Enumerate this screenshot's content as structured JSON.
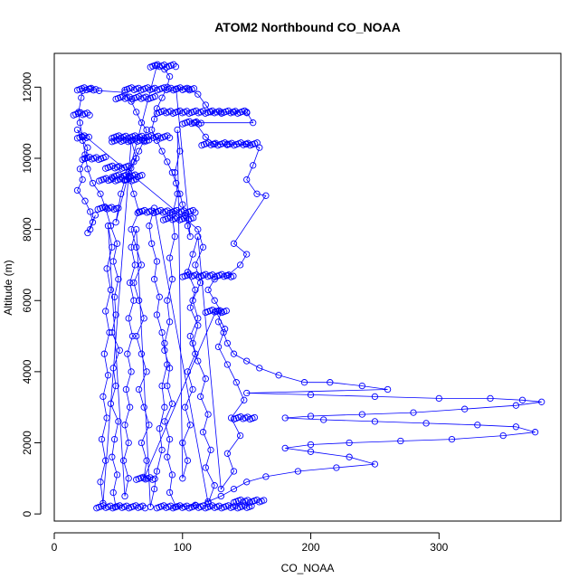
{
  "chart_data": {
    "type": "scatter",
    "title": "ATOM2 Northbound CO_NOAA",
    "xlabel": "CO_NOAA",
    "ylabel": "Altitude (m)",
    "xlim": [
      0,
      395
    ],
    "ylim": [
      -200,
      12950
    ],
    "x_ticks": [
      0,
      100,
      200,
      300
    ],
    "y_ticks": [
      0,
      2000,
      4000,
      6000,
      8000,
      10000,
      12000
    ],
    "grid": false,
    "legend": "none",
    "marker": "open-circle",
    "connect_points": true,
    "color": "#0000ff",
    "series": [
      {
        "points": [
          [
            48,
            200
          ],
          [
            46,
            600
          ],
          [
            49,
            1100
          ],
          [
            45,
            1600
          ],
          [
            47,
            2100
          ],
          [
            50,
            2600
          ],
          [
            44,
            3100
          ],
          [
            48,
            3600
          ],
          [
            46,
            4100
          ],
          [
            51,
            4600
          ],
          [
            45,
            5100
          ],
          [
            48,
            5600
          ],
          [
            47,
            6100
          ],
          [
            50,
            6600
          ],
          [
            46,
            7100
          ],
          [
            49,
            7600
          ],
          [
            44,
            8100
          ],
          [
            40,
            8600
          ],
          [
            36,
            9000
          ],
          [
            30,
            9300
          ],
          [
            26,
            9700
          ],
          [
            24,
            10100
          ],
          [
            22,
            10600
          ],
          [
            20,
            11000
          ],
          [
            19,
            11300
          ],
          [
            21,
            11700
          ],
          [
            22,
            11900
          ],
          [
            28,
            11950
          ],
          [
            35,
            11900
          ],
          [
            55,
            11850
          ],
          [
            60,
            11600
          ],
          [
            64,
            11300
          ],
          [
            68,
            11000
          ],
          [
            72,
            10800
          ],
          [
            70,
            10500
          ],
          [
            66,
            10200
          ],
          [
            62,
            9900
          ],
          [
            58,
            9600
          ],
          [
            55,
            9400
          ],
          [
            52,
            9000
          ],
          [
            50,
            8600
          ],
          [
            48,
            8200
          ],
          [
            80,
            12600
          ],
          [
            86,
            12500
          ],
          [
            90,
            12300
          ],
          [
            88,
            12000
          ],
          [
            84,
            11700
          ],
          [
            80,
            11400
          ],
          [
            78,
            11100
          ],
          [
            76,
            10800
          ],
          [
            80,
            10500
          ],
          [
            84,
            10200
          ],
          [
            88,
            9900
          ],
          [
            92,
            9600
          ],
          [
            95,
            9300
          ],
          [
            98,
            9000
          ],
          [
            100,
            8700
          ],
          [
            102,
            8400
          ],
          [
            104,
            8100
          ],
          [
            106,
            7800
          ],
          [
            95,
            11950
          ],
          [
            105,
            11950
          ],
          [
            112,
            11800
          ],
          [
            118,
            11500
          ],
          [
            122,
            11300
          ],
          [
            130,
            11300
          ],
          [
            140,
            11300
          ],
          [
            150,
            11300
          ],
          [
            155,
            11000
          ],
          [
            110,
            11000
          ],
          [
            118,
            10600
          ],
          [
            125,
            10400
          ],
          [
            135,
            10400
          ],
          [
            150,
            10400
          ],
          [
            160,
            10300
          ],
          [
            155,
            9800
          ],
          [
            150,
            9400
          ],
          [
            158,
            9000
          ],
          [
            165,
            8950
          ],
          [
            140,
            7600
          ],
          [
            150,
            7300
          ],
          [
            145,
            7000
          ],
          [
            135,
            6700
          ],
          [
            125,
            6600
          ],
          [
            120,
            6300
          ],
          [
            125,
            6000
          ],
          [
            130,
            5700
          ],
          [
            128,
            5400
          ],
          [
            132,
            5100
          ],
          [
            135,
            4800
          ],
          [
            140,
            4500
          ],
          [
            150,
            4300
          ],
          [
            160,
            4100
          ],
          [
            175,
            3900
          ],
          [
            195,
            3700
          ],
          [
            215,
            3700
          ],
          [
            240,
            3600
          ],
          [
            260,
            3500
          ],
          [
            150,
            3400
          ],
          [
            200,
            3350
          ],
          [
            250,
            3300
          ],
          [
            300,
            3250
          ],
          [
            340,
            3250
          ],
          [
            365,
            3200
          ],
          [
            380,
            3150
          ],
          [
            360,
            3050
          ],
          [
            320,
            2950
          ],
          [
            280,
            2850
          ],
          [
            240,
            2800
          ],
          [
            200,
            2750
          ],
          [
            180,
            2700
          ],
          [
            210,
            2650
          ],
          [
            250,
            2600
          ],
          [
            290,
            2550
          ],
          [
            330,
            2500
          ],
          [
            360,
            2450
          ],
          [
            375,
            2300
          ],
          [
            350,
            2200
          ],
          [
            310,
            2100
          ],
          [
            270,
            2050
          ],
          [
            230,
            2000
          ],
          [
            200,
            1950
          ],
          [
            180,
            1850
          ],
          [
            200,
            1750
          ],
          [
            230,
            1600
          ],
          [
            250,
            1400
          ],
          [
            220,
            1300
          ],
          [
            190,
            1200
          ],
          [
            165,
            1050
          ],
          [
            150,
            900
          ],
          [
            140,
            700
          ],
          [
            130,
            500
          ],
          [
            120,
            350
          ],
          [
            110,
            250
          ],
          [
            95,
            200
          ],
          [
            90,
            600
          ],
          [
            92,
            1100
          ],
          [
            88,
            1600
          ],
          [
            90,
            2100
          ],
          [
            86,
            2600
          ],
          [
            92,
            3100
          ],
          [
            88,
            3600
          ],
          [
            90,
            4100
          ],
          [
            86,
            4600
          ],
          [
            84,
            5100
          ],
          [
            80,
            5600
          ],
          [
            82,
            6100
          ],
          [
            78,
            6600
          ],
          [
            80,
            7100
          ],
          [
            76,
            7600
          ],
          [
            74,
            8100
          ],
          [
            78,
            8600
          ],
          [
            120,
            300
          ],
          [
            125,
            800
          ],
          [
            118,
            1300
          ],
          [
            122,
            1800
          ],
          [
            116,
            2300
          ],
          [
            120,
            2800
          ],
          [
            114,
            3300
          ],
          [
            118,
            3800
          ],
          [
            112,
            4300
          ],
          [
            108,
            4800
          ],
          [
            112,
            5300
          ],
          [
            106,
            5800
          ],
          [
            110,
            6300
          ],
          [
            104,
            6800
          ],
          [
            108,
            7300
          ],
          [
            112,
            7800
          ],
          [
            130,
            700
          ],
          [
            140,
            1200
          ],
          [
            135,
            1700
          ],
          [
            145,
            2200
          ],
          [
            138,
            2700
          ],
          [
            148,
            3200
          ],
          [
            142,
            3700
          ],
          [
            135,
            4200
          ],
          [
            128,
            4700
          ],
          [
            133,
            5200
          ],
          [
            126,
            5700
          ],
          [
            70,
            1000
          ],
          [
            72,
            1500
          ],
          [
            68,
            2000
          ],
          [
            74,
            2500
          ],
          [
            70,
            3000
          ],
          [
            66,
            3500
          ],
          [
            72,
            4000
          ],
          [
            68,
            4500
          ],
          [
            64,
            5000
          ],
          [
            70,
            5500
          ],
          [
            66,
            6000
          ],
          [
            62,
            6500
          ],
          [
            68,
            7000
          ],
          [
            64,
            7500
          ],
          [
            60,
            8000
          ],
          [
            66,
            8500
          ],
          [
            62,
            9000
          ],
          [
            58,
            9500
          ],
          [
            64,
            10000
          ],
          [
            60,
            10500
          ],
          [
            38,
            300
          ],
          [
            36,
            900
          ],
          [
            40,
            1500
          ],
          [
            37,
            2100
          ],
          [
            41,
            2700
          ],
          [
            38,
            3300
          ],
          [
            42,
            3900
          ],
          [
            39,
            4500
          ],
          [
            43,
            5100
          ],
          [
            40,
            5700
          ],
          [
            44,
            6300
          ],
          [
            41,
            6900
          ],
          [
            45,
            7500
          ],
          [
            42,
            8100
          ],
          [
            55,
            500
          ],
          [
            58,
            1000
          ],
          [
            54,
            1500
          ],
          [
            58,
            2000
          ],
          [
            55,
            2500
          ],
          [
            59,
            3000
          ],
          [
            56,
            3500
          ],
          [
            60,
            4000
          ],
          [
            57,
            4500
          ],
          [
            61,
            5000
          ],
          [
            58,
            5500
          ],
          [
            62,
            6000
          ],
          [
            59,
            6500
          ],
          [
            63,
            7000
          ],
          [
            60,
            7500
          ],
          [
            64,
            8000
          ],
          [
            75,
            200
          ],
          [
            78,
            700
          ],
          [
            80,
            1200
          ],
          [
            84,
            1800
          ],
          [
            82,
            2400
          ],
          [
            86,
            3000
          ],
          [
            84,
            3600
          ],
          [
            88,
            4200
          ],
          [
            86,
            4800
          ],
          [
            90,
            5400
          ],
          [
            88,
            6000
          ],
          [
            92,
            6600
          ],
          [
            90,
            7200
          ],
          [
            94,
            7800
          ],
          [
            92,
            8400
          ],
          [
            96,
            9000
          ],
          [
            94,
            9600
          ],
          [
            98,
            10200
          ],
          [
            96,
            10800
          ],
          [
            100,
            1000
          ],
          [
            104,
            1500
          ],
          [
            100,
            2000
          ],
          [
            106,
            2500
          ],
          [
            102,
            3000
          ],
          [
            108,
            3500
          ],
          [
            104,
            4000
          ],
          [
            110,
            4500
          ],
          [
            106,
            5000
          ],
          [
            112,
            5500
          ],
          [
            108,
            6000
          ],
          [
            114,
            6500
          ],
          [
            110,
            7000
          ],
          [
            116,
            7500
          ],
          [
            112,
            8000
          ],
          [
            18,
            10800
          ],
          [
            22,
            10500
          ],
          [
            26,
            10300
          ],
          [
            24,
            10000
          ],
          [
            20,
            9700
          ],
          [
            22,
            9400
          ],
          [
            18,
            9100
          ],
          [
            24,
            8800
          ],
          [
            28,
            8500
          ],
          [
            30,
            8200
          ],
          [
            26,
            7900
          ],
          [
            32,
            8400
          ],
          [
            28,
            8000
          ]
        ]
      }
    ],
    "level_runs": [
      {
        "y": 12600,
        "x_from": 75,
        "x_to": 95
      },
      {
        "y": 11950,
        "x_from": 18,
        "x_to": 33
      },
      {
        "y": 11950,
        "x_from": 55,
        "x_to": 110
      },
      {
        "y": 11700,
        "x_from": 48,
        "x_to": 80
      },
      {
        "y": 11300,
        "x_from": 80,
        "x_to": 152
      },
      {
        "y": 11250,
        "x_from": 15,
        "x_to": 28
      },
      {
        "y": 11000,
        "x_from": 100,
        "x_to": 115
      },
      {
        "y": 10600,
        "x_from": 18,
        "x_to": 28
      },
      {
        "y": 10600,
        "x_from": 45,
        "x_to": 90
      },
      {
        "y": 10500,
        "x_from": 45,
        "x_to": 75
      },
      {
        "y": 10400,
        "x_from": 115,
        "x_to": 160
      },
      {
        "y": 10000,
        "x_from": 22,
        "x_to": 40
      },
      {
        "y": 9750,
        "x_from": 40,
        "x_to": 60
      },
      {
        "y": 9500,
        "x_from": 45,
        "x_to": 70
      },
      {
        "y": 9400,
        "x_from": 35,
        "x_to": 65
      },
      {
        "y": 8600,
        "x_from": 34,
        "x_to": 50
      },
      {
        "y": 8500,
        "x_from": 65,
        "x_to": 110
      },
      {
        "y": 8300,
        "x_from": 85,
        "x_to": 110
      },
      {
        "y": 6700,
        "x_from": 100,
        "x_to": 140
      },
      {
        "y": 5700,
        "x_from": 118,
        "x_to": 135
      },
      {
        "y": 2700,
        "x_from": 140,
        "x_to": 158
      },
      {
        "y": 1000,
        "x_from": 64,
        "x_to": 80
      },
      {
        "y": 360,
        "x_from": 140,
        "x_to": 165
      },
      {
        "y": 200,
        "x_from": 33,
        "x_to": 72
      },
      {
        "y": 200,
        "x_from": 80,
        "x_to": 155
      }
    ]
  }
}
